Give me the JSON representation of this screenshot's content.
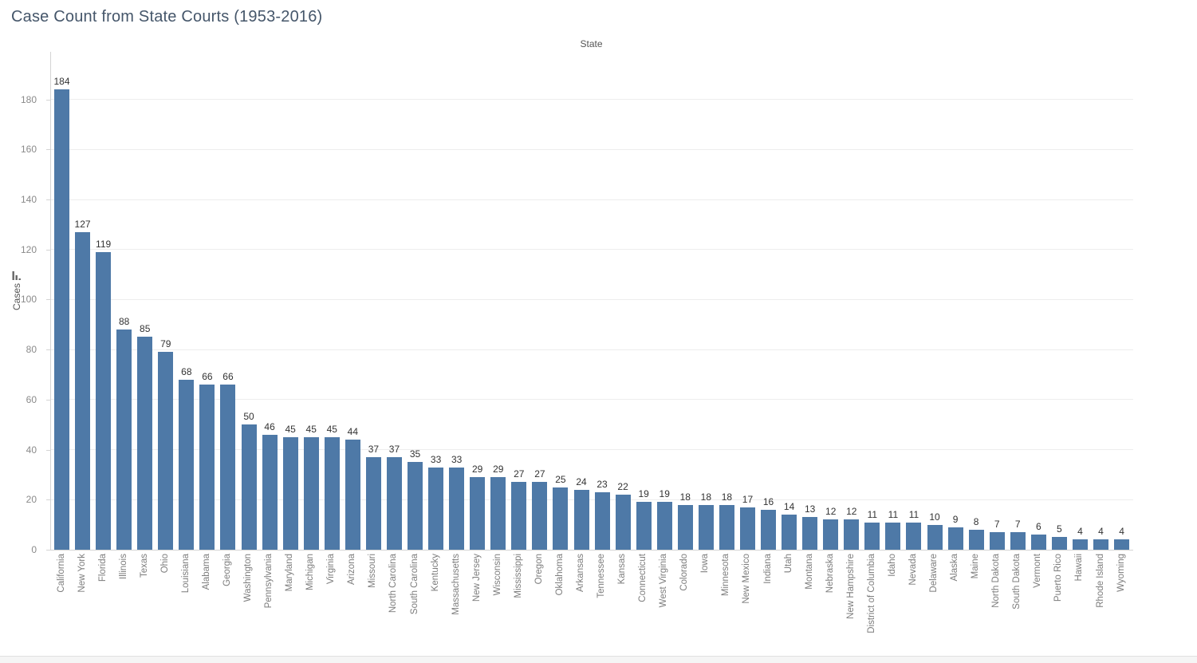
{
  "chart_data": {
    "type": "bar",
    "title": "Case Count from State Courts (1953-2016)",
    "xlabel": "State",
    "ylabel": "Cases",
    "ylim": [
      0,
      199
    ],
    "yticks": [
      0,
      20,
      40,
      60,
      80,
      100,
      120,
      140,
      160,
      180
    ],
    "grid": "horizontal",
    "legend": "none",
    "bar_color": "#4e79a7",
    "categories": [
      "California",
      "New York",
      "Florida",
      "Illinois",
      "Texas",
      "Ohio",
      "Louisiana",
      "Alabama",
      "Georgia",
      "Washington",
      "Pennsylvania",
      "Maryland",
      "Michigan",
      "Virginia",
      "Arizona",
      "Missouri",
      "North Carolina",
      "South Carolina",
      "Kentucky",
      "Massachusetts",
      "New Jersey",
      "Wisconsin",
      "Mississippi",
      "Oregon",
      "Oklahoma",
      "Arkansas",
      "Tennessee",
      "Kansas",
      "Connecticut",
      "West Virginia",
      "Colorado",
      "Iowa",
      "Minnesota",
      "New Mexico",
      "Indiana",
      "Utah",
      "Montana",
      "Nebraska",
      "New Hampshire",
      "District of Columbia",
      "Idaho",
      "Nevada",
      "Delaware",
      "Alaska",
      "Maine",
      "North Dakota",
      "South Dakota",
      "Vermont",
      "Puerto Rico",
      "Hawaii",
      "Rhode Island",
      "Wyoming"
    ],
    "values": [
      184,
      127,
      119,
      88,
      85,
      79,
      68,
      66,
      66,
      50,
      46,
      45,
      45,
      45,
      44,
      37,
      37,
      35,
      33,
      33,
      29,
      29,
      27,
      27,
      25,
      24,
      23,
      22,
      19,
      19,
      18,
      18,
      18,
      17,
      16,
      14,
      13,
      12,
      12,
      11,
      11,
      11,
      10,
      9,
      8,
      7,
      7,
      6,
      5,
      4,
      4,
      4
    ]
  },
  "icons": {
    "y_axis_sort": "sort-descending-icon"
  },
  "colors": {
    "bar": "#4e79a7",
    "title_text": "#45566a",
    "axis_text": "#8a8a8a",
    "category_text": "#7c7c7c",
    "value_label_text": "#333333",
    "axis_line": "#d4d4d4",
    "gridline": "#ededed"
  }
}
